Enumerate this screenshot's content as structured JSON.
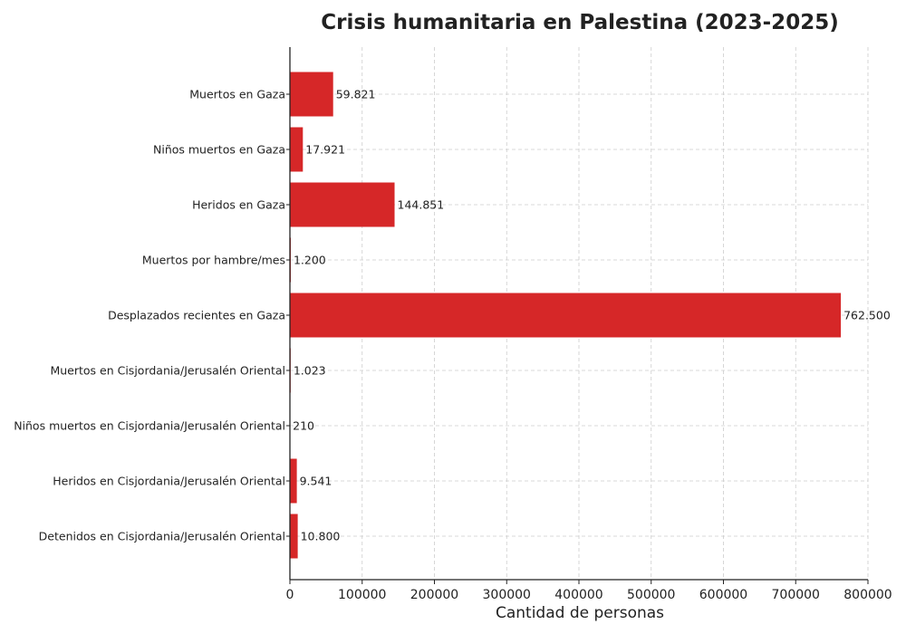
{
  "chart_data": {
    "type": "bar",
    "orientation": "horizontal",
    "title": "Crisis humanitaria en Palestina (2023-2025)",
    "xlabel": "Cantidad de personas",
    "ylabel": "",
    "xlim": [
      0,
      800000
    ],
    "xticks": [
      0,
      100000,
      200000,
      300000,
      400000,
      500000,
      600000,
      700000,
      800000
    ],
    "xtick_labels": [
      "0",
      "100000",
      "200000",
      "300000",
      "400000",
      "500000",
      "600000",
      "700000",
      "800000"
    ],
    "grid": true,
    "bar_color": "#d62728",
    "categories": [
      "Muertos en Gaza",
      "Niños muertos en Gaza",
      "Heridos en Gaza",
      "Muertos por hambre/mes",
      "Desplazados recientes en Gaza",
      "Muertos en Cisjordania/Jerusalén Oriental",
      "Niños muertos en Cisjordania/Jerusalén Oriental",
      "Heridos en Cisjordania/Jerusalén Oriental",
      "Detenidos en Cisjordania/Jerusalén Oriental"
    ],
    "values": [
      59821,
      17921,
      144851,
      1200,
      762500,
      1023,
      210,
      9541,
      10800
    ],
    "data_labels": [
      "59.821",
      "17.921",
      "144.851",
      "1.200",
      "762.500",
      "1.023",
      "210",
      "9.541",
      "10.800"
    ]
  }
}
